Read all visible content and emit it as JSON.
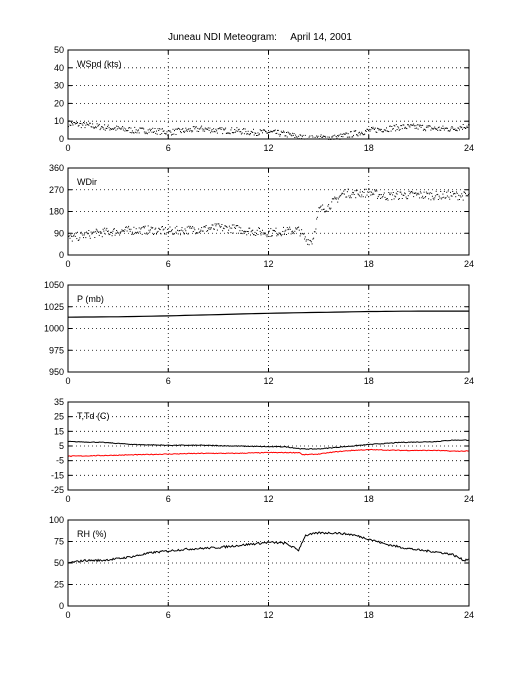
{
  "title": "Juneau NDI Meteogram:     April 14, 2001",
  "colors": {
    "axis": "#000000",
    "grid": "#000000",
    "primary": "#000000",
    "dewpoint": "#ff0000",
    "background": "#ffffff"
  },
  "chart_data": [
    {
      "type": "scatter",
      "label": "WSpd (kts)",
      "xlim": [
        0,
        24
      ],
      "ylim": [
        0,
        50
      ],
      "xticks": [
        0,
        6,
        12,
        18,
        24
      ],
      "yticks": [
        0,
        10,
        20,
        30,
        40,
        50
      ],
      "grid": true,
      "series": [
        {
          "x": [
            0,
            1,
            2,
            3,
            4,
            5,
            6,
            7,
            8,
            9,
            10,
            11,
            12,
            13,
            14,
            14.5,
            15,
            16,
            17,
            18,
            19,
            20,
            21,
            22,
            23,
            24
          ],
          "values": [
            9,
            8,
            7,
            6,
            5,
            5,
            4,
            5,
            6,
            5,
            5,
            4,
            4,
            3,
            1,
            0.5,
            1,
            1,
            3,
            5,
            6,
            7,
            7,
            6,
            6,
            8
          ]
        }
      ]
    },
    {
      "type": "scatter",
      "label": "WDir",
      "xlim": [
        0,
        24
      ],
      "ylim": [
        0,
        360
      ],
      "xticks": [
        0,
        6,
        12,
        18,
        24
      ],
      "yticks": [
        0,
        90,
        180,
        270,
        360
      ],
      "grid": true,
      "series": [
        {
          "x": [
            0,
            1,
            2,
            3,
            4,
            5,
            6,
            7,
            8,
            9,
            10,
            11,
            12,
            13,
            13.8,
            14.2,
            14.6,
            15,
            15.5,
            16,
            16.5,
            17,
            18,
            19,
            20,
            21,
            22,
            23,
            24
          ],
          "values": [
            70,
            85,
            95,
            100,
            105,
            105,
            100,
            105,
            110,
            115,
            110,
            100,
            95,
            100,
            105,
            65,
            60,
            190,
            200,
            230,
            260,
            255,
            260,
            245,
            250,
            250,
            248,
            250,
            245
          ]
        }
      ]
    },
    {
      "type": "line",
      "label": "P (mb)",
      "xlim": [
        0,
        24
      ],
      "ylim": [
        950,
        1050
      ],
      "xticks": [
        0,
        6,
        12,
        18,
        24
      ],
      "yticks": [
        950,
        975,
        1000,
        1025,
        1050
      ],
      "grid": true,
      "series": [
        {
          "x": [
            0,
            3,
            6,
            9,
            12,
            15,
            18,
            21,
            24
          ],
          "values": [
            1013,
            1013.5,
            1014.5,
            1016,
            1017.5,
            1018.5,
            1019.5,
            1020,
            1020
          ]
        }
      ]
    },
    {
      "type": "line",
      "label": "T,Td (C)",
      "xlim": [
        0,
        24
      ],
      "ylim": [
        -25,
        35
      ],
      "xticks": [
        0,
        6,
        12,
        18,
        24
      ],
      "yticks": [
        -25,
        -15,
        -5,
        5,
        15,
        25,
        35
      ],
      "grid": true,
      "series": [
        {
          "x": [
            0,
            2,
            4,
            6,
            8,
            10,
            12,
            13,
            14,
            15,
            16,
            17,
            18,
            20,
            22,
            23,
            24
          ],
          "values": [
            8,
            7.5,
            6,
            5.5,
            5.5,
            5,
            4.5,
            4.5,
            3,
            3,
            4,
            5,
            6,
            7.5,
            8,
            9,
            9
          ]
        },
        {
          "x": [
            0,
            2,
            4,
            6,
            8,
            10,
            12,
            13.9,
            14,
            15,
            16,
            17,
            18,
            20,
            22,
            23,
            24
          ],
          "values": [
            -2,
            -1.5,
            -1,
            -0.5,
            0,
            0,
            0.5,
            0.5,
            -1,
            -0.5,
            1,
            2,
            2.5,
            2,
            2,
            1.5,
            1.5
          ]
        }
      ]
    },
    {
      "type": "line",
      "label": "RH (%)",
      "xlim": [
        0,
        24
      ],
      "ylim": [
        0,
        100
      ],
      "xticks": [
        0,
        6,
        12,
        18,
        24
      ],
      "yticks": [
        0,
        25,
        50,
        75,
        100
      ],
      "grid": true,
      "series": [
        {
          "x": [
            0,
            1,
            2,
            3,
            4,
            5,
            6,
            7,
            8,
            9,
            10,
            11,
            12,
            13,
            13.8,
            14.2,
            15,
            16,
            17,
            18,
            19,
            20,
            21,
            22,
            23,
            23.7,
            24
          ],
          "values": [
            50,
            53,
            53,
            55,
            58,
            62,
            64,
            66,
            67,
            68,
            70,
            72,
            74,
            73,
            65,
            82,
            85,
            85,
            83,
            78,
            72,
            68,
            65,
            63,
            60,
            53,
            55
          ]
        }
      ]
    }
  ]
}
